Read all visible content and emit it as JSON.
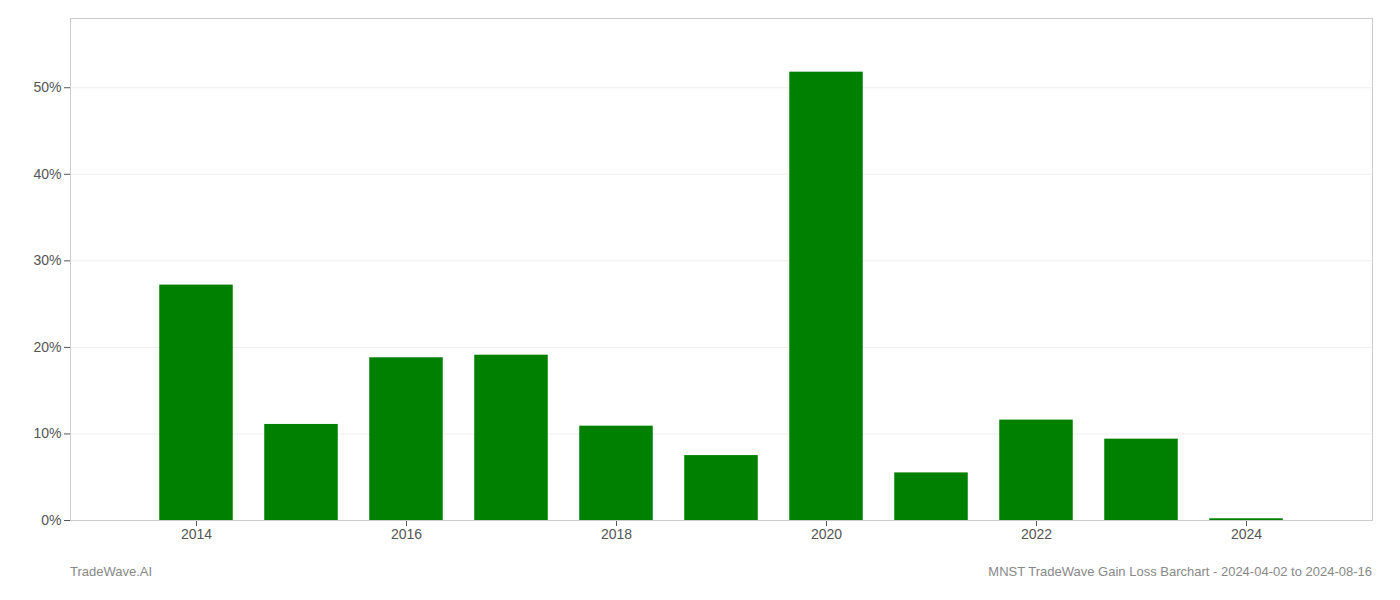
{
  "chart_data": {
    "type": "bar",
    "x": [
      2014,
      2015,
      2016,
      2017,
      2018,
      2019,
      2020,
      2021,
      2022,
      2023,
      2024
    ],
    "values": [
      0.272,
      0.111,
      0.188,
      0.191,
      0.109,
      0.075,
      0.518,
      0.055,
      0.116,
      0.094,
      0.002
    ],
    "color": "#008000",
    "xlim": [
      2012.8,
      2025.2
    ],
    "xticks": [
      2014,
      2016,
      2018,
      2020,
      2022,
      2024
    ],
    "ylim": [
      0,
      0.58
    ],
    "yticks": [
      {
        "value": 0.0,
        "label": "0%"
      },
      {
        "value": 0.1,
        "label": "10%"
      },
      {
        "value": 0.2,
        "label": "20%"
      },
      {
        "value": 0.3,
        "label": "30%"
      },
      {
        "value": 0.4,
        "label": "40%"
      },
      {
        "value": 0.5,
        "label": "50%"
      }
    ],
    "grid": true,
    "annotations": [
      "TradeWave.AI",
      "MNST TradeWave Gain Loss Barchart - 2024-04-02 to 2024-08-16"
    ]
  }
}
